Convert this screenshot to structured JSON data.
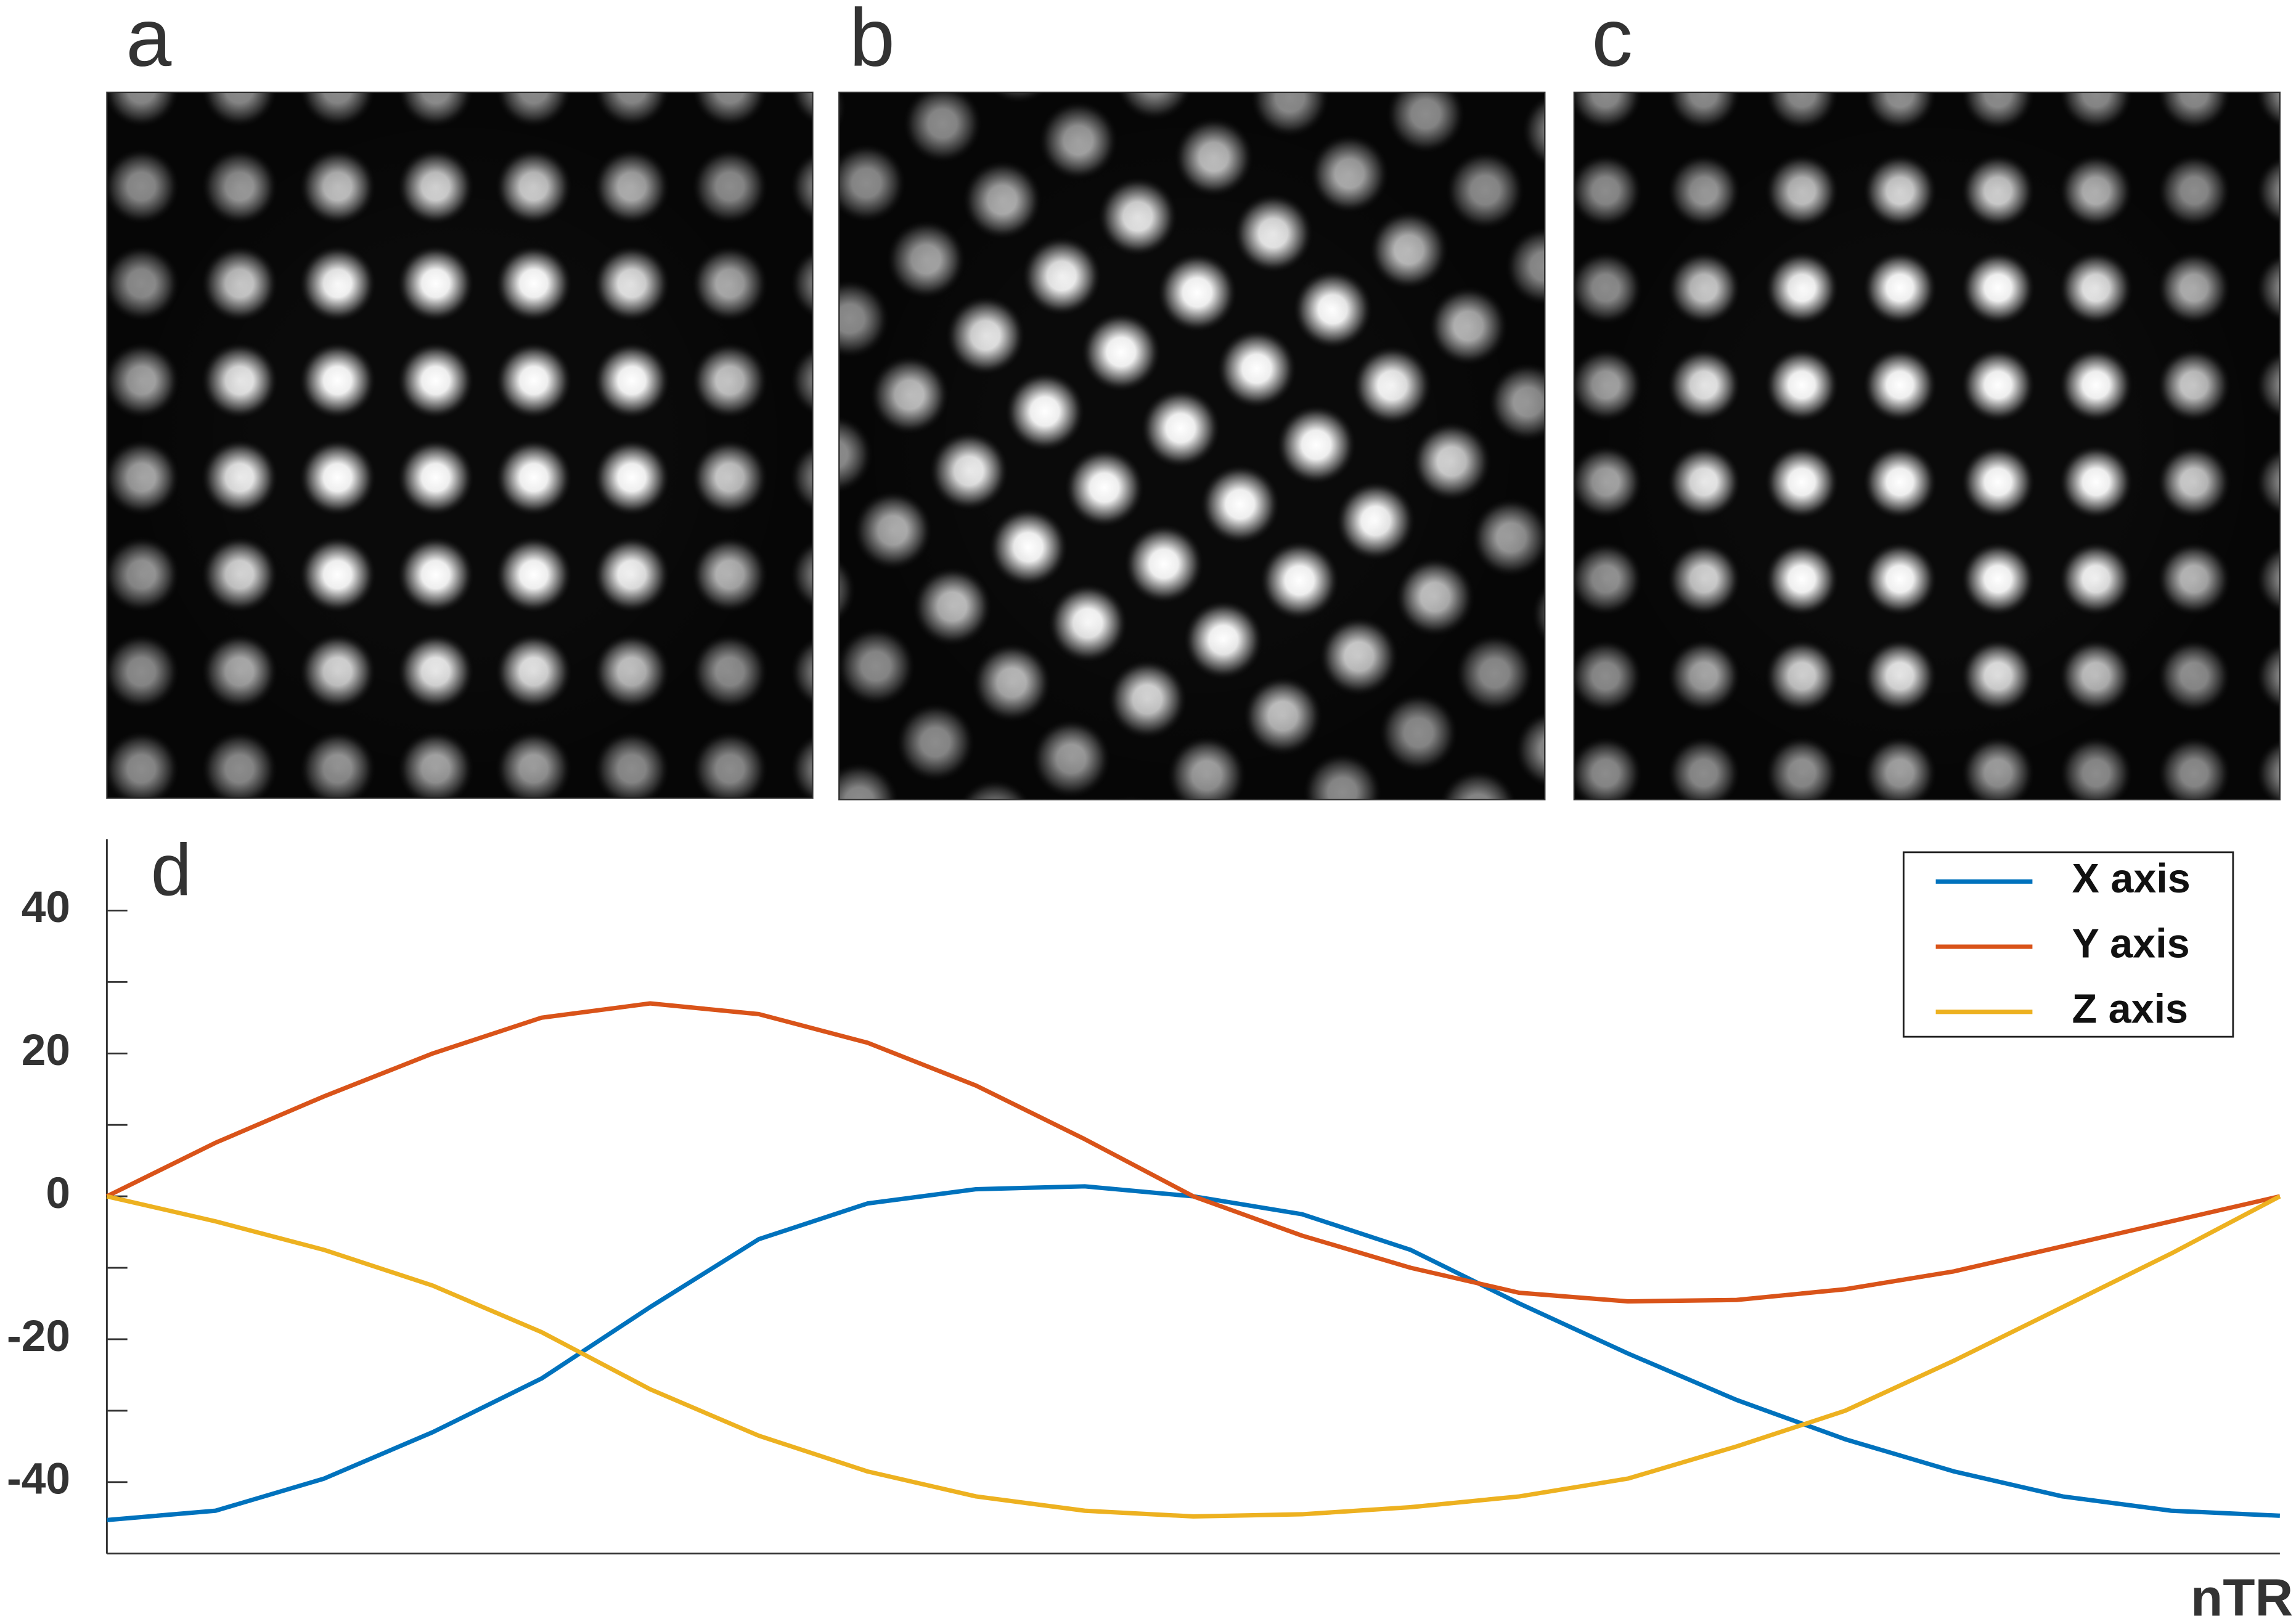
{
  "panels": [
    "a",
    "b",
    "c"
  ],
  "chart_data": {
    "type": "line",
    "label": "d",
    "xlabel": "nTR",
    "x": [
      0,
      0.05,
      0.1,
      0.15,
      0.2,
      0.25,
      0.3,
      0.35,
      0.4,
      0.45,
      0.5,
      0.55,
      0.6,
      0.65,
      0.7,
      0.75,
      0.8,
      0.85,
      0.9,
      0.95,
      1
    ],
    "xlim": [
      0,
      1
    ],
    "ylim": [
      -50,
      50
    ],
    "yticks": [
      -40,
      -20,
      0,
      20,
      40
    ],
    "yticks_minor": [
      -30,
      -10,
      10,
      30
    ],
    "legend": "upper right",
    "series": [
      {
        "name": "X axis",
        "color": "#0072bd",
        "values": [
          -45.3,
          -44,
          -39.5,
          -33,
          -25.5,
          -15.5,
          -6,
          -1,
          1,
          1.4,
          0,
          -2.5,
          -7.5,
          -15,
          -22,
          -28.5,
          -34,
          -38.5,
          -42,
          -44,
          -44.7
        ]
      },
      {
        "name": "Y axis",
        "color": "#d95319",
        "values": [
          0,
          7.5,
          14,
          20,
          25,
          27,
          25.5,
          21.5,
          15.5,
          8,
          0,
          -5.5,
          -10,
          -13.5,
          -14.7,
          -14.5,
          -13,
          -10.5,
          -7,
          -3.5,
          0
        ]
      },
      {
        "name": "Z axis",
        "color": "#edb120",
        "values": [
          0,
          -3.5,
          -7.5,
          -12.5,
          -19,
          -27,
          -33.5,
          -38.5,
          -42,
          -44,
          -44.8,
          -44.5,
          -43.5,
          -42,
          -39.5,
          -35,
          -30,
          -23,
          -15.5,
          -8,
          0
        ]
      }
    ]
  }
}
